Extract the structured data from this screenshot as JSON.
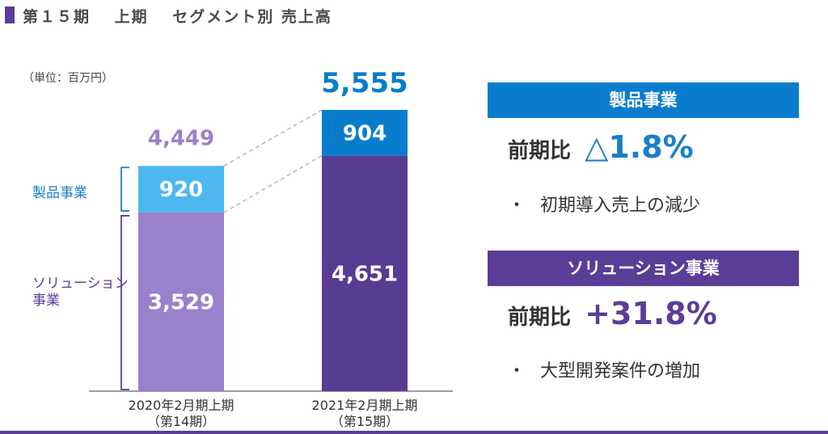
{
  "title": "第１５期　 上期　 セグメント別 売上高",
  "unit_label": "（単位：百万円）",
  "segments": {
    "product_label": "製品事業",
    "solution_label_line1": "ソリューション",
    "solution_label_line2": "事業"
  },
  "chart_data": {
    "type": "bar",
    "stacked": true,
    "categories": [
      "2020年2月期上期（第14期）",
      "2021年2月期上期（第15期）"
    ],
    "category_lines": [
      [
        "2020年2月期上期",
        "（第14期）"
      ],
      [
        "2021年2月期上期",
        "（第15期）"
      ]
    ],
    "series": [
      {
        "name": "ソリューション事業",
        "values": [
          3529,
          4651
        ],
        "colors": [
          "#9b80cc",
          "#583b93"
        ]
      },
      {
        "name": "製品事業",
        "values": [
          920,
          904
        ],
        "colors": [
          "#4db8f0",
          "#0a7ccd"
        ]
      }
    ],
    "value_labels": [
      [
        "3,529",
        "4,651"
      ],
      [
        "920",
        "904"
      ]
    ],
    "totals": [
      4449,
      5555
    ],
    "total_labels": [
      "4,449",
      "5,555"
    ],
    "total_colors": [
      "#9b80cc",
      "#0a7ccd"
    ],
    "ylim": [
      0,
      5555
    ]
  },
  "panels": [
    {
      "header": "製品事業",
      "header_color": "#0a7ccd",
      "comparison_label": "前期比",
      "comparison_value": "△1.8%",
      "value_color": "#1a7fc7",
      "bullet": "・",
      "bullet_text": "初期導入売上の減少"
    },
    {
      "header": "ソリューション事業",
      "header_color": "#5b3d98",
      "comparison_label": "前期比",
      "comparison_value": "+31.8%",
      "value_color": "#5b3d98",
      "bullet": "・",
      "bullet_text": "大型開発案件の増加"
    }
  ]
}
